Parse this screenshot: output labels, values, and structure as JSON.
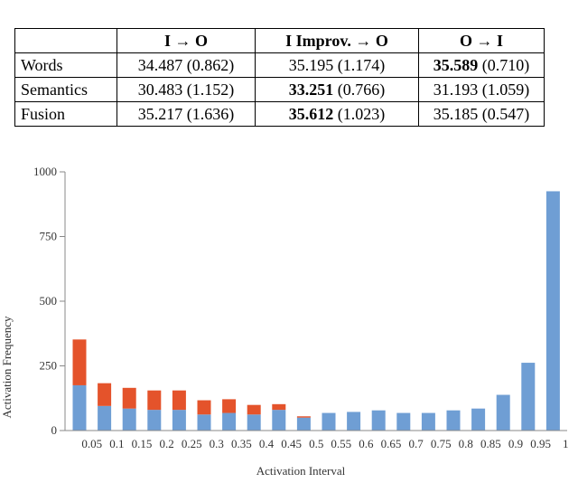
{
  "table": {
    "headers": [
      "",
      "I → O",
      "I Improv. → O",
      "O → I"
    ],
    "rows": [
      {
        "name": "Words",
        "cells": [
          {
            "value": "34.487",
            "std": "(0.862)",
            "bold": false
          },
          {
            "value": "35.195",
            "std": "(1.174)",
            "bold": false
          },
          {
            "value": "35.589",
            "std": "(0.710)",
            "bold": true
          }
        ]
      },
      {
        "name": "Semantics",
        "cells": [
          {
            "value": "30.483",
            "std": "(1.152)",
            "bold": false
          },
          {
            "value": "33.251",
            "std": "(0.766)",
            "bold": true
          },
          {
            "value": "31.193",
            "std": "(1.059)",
            "bold": false
          }
        ]
      },
      {
        "name": "Fusion",
        "cells": [
          {
            "value": "35.217",
            "std": "(1.636)",
            "bold": false
          },
          {
            "value": "35.612",
            "std": "(1.023)",
            "bold": true
          },
          {
            "value": "35.185",
            "std": "(0.547)",
            "bold": false
          }
        ]
      }
    ]
  },
  "colors": {
    "blue": "#6f9ed4",
    "orange": "#e4532b"
  },
  "chart_data": {
    "type": "bar",
    "stacked": true,
    "xlabel": "Activation Interval",
    "ylabel": "Activation Frequency",
    "ylim": [
      0,
      1000
    ],
    "yticks": [
      0,
      250,
      500,
      750,
      1000
    ],
    "categories": [
      "0.05",
      "0.1",
      "0.15",
      "0.2",
      "0.25",
      "0.3",
      "0.35",
      "0.4",
      "0.45",
      "0.5",
      "0.55",
      "0.6",
      "0.65",
      "0.7",
      "0.75",
      "0.8",
      "0.85",
      "0.9",
      "0.95",
      "1"
    ],
    "series": [
      {
        "values": [
          175,
          95,
          85,
          80,
          80,
          62,
          68,
          62,
          80,
          50,
          68,
          72,
          78,
          68,
          68,
          78,
          85,
          138,
          262,
          925
        ]
      },
      {
        "values": [
          177,
          88,
          80,
          75,
          75,
          55,
          53,
          37,
          22,
          5,
          0,
          0,
          0,
          0,
          0,
          0,
          0,
          0,
          0,
          0
        ]
      }
    ],
    "grid": false,
    "legend": "none"
  }
}
